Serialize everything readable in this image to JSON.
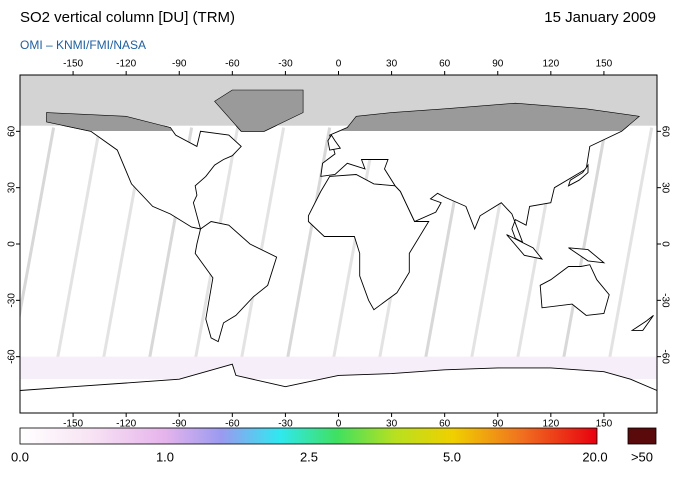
{
  "header": {
    "title": "SO2 vertical column [DU] (TRM)",
    "date": "15 January 2009",
    "subtitle": "OMI – KNMI/FMI/NASA"
  },
  "map": {
    "lon_ticks": [
      -150,
      -120,
      -90,
      -60,
      -30,
      0,
      30,
      60,
      90,
      120,
      150
    ],
    "lat_ticks": [
      60,
      30,
      0,
      -30,
      -60
    ]
  },
  "colorbar": {
    "labels": [
      "0.0",
      "1.0",
      "2.5",
      "5.0",
      "20.0",
      ">50"
    ]
  }
}
